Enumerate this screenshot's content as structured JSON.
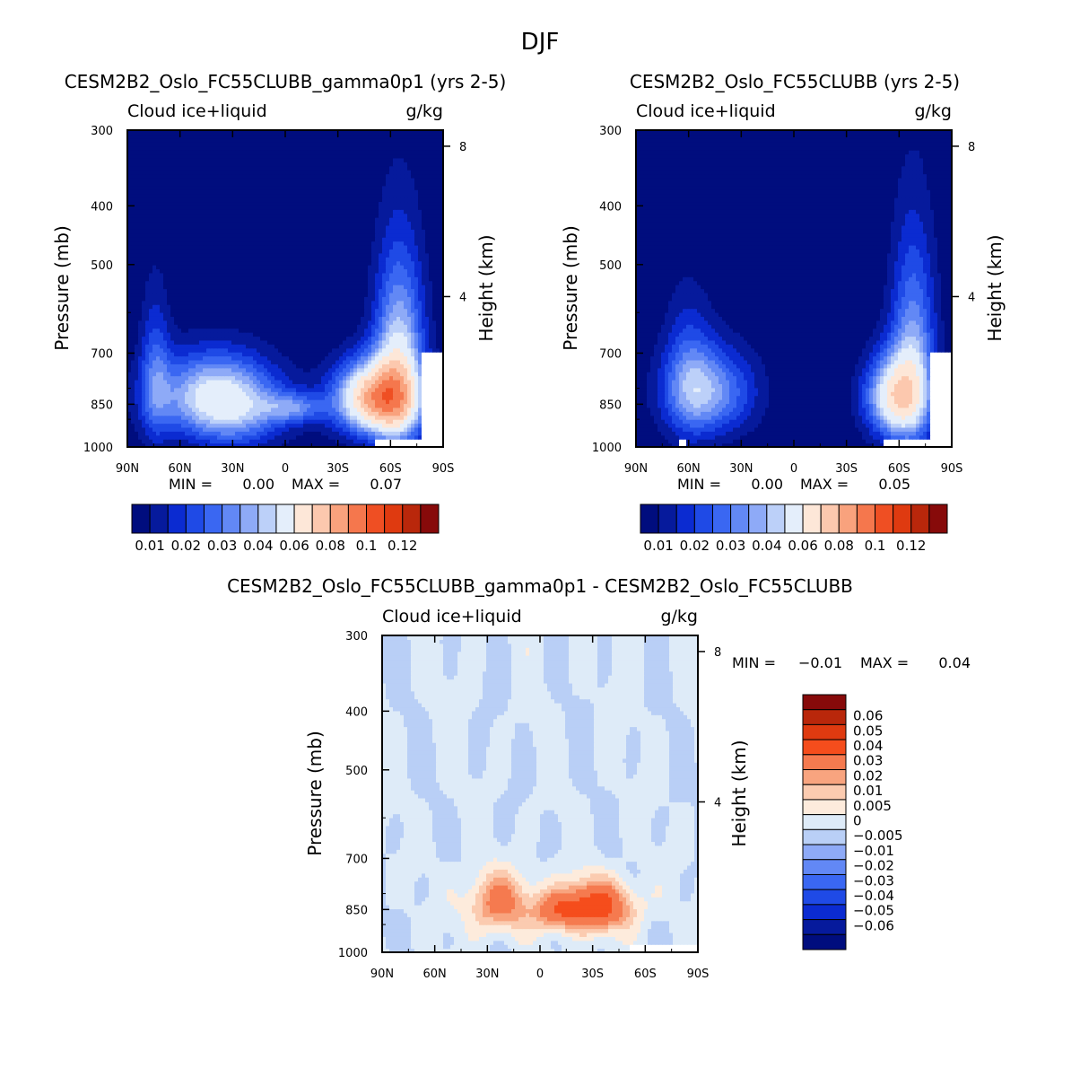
{
  "title": "DJF",
  "common": {
    "variable": "Cloud ice+liquid",
    "units": "g/kg",
    "ylabel": "Pressure (mb)",
    "y2label": "Height (km)",
    "min_label": "MIN =",
    "max_label": "MAX ="
  },
  "palettes": {
    "abs": [
      "#000d7e",
      "#061a9c",
      "#0b2bd1",
      "#1f4ae6",
      "#3a67f2",
      "#6288f5",
      "#8eaaf7",
      "#bcd0f9",
      "#e4eefb",
      "#fde7d8",
      "#fcc8ae",
      "#f9a27d",
      "#f5774d",
      "#ef4f23",
      "#df3a10",
      "#b9270b",
      "#870a0a"
    ],
    "diff": [
      "#870a0a",
      "#b9270b",
      "#df3a10",
      "#f54d1c",
      "#f57a4f",
      "#f8a47f",
      "#fbcbb0",
      "#fdebdc",
      "#deebf8",
      "#b9cff6",
      "#8eaaf7",
      "#6288f5",
      "#3a67f2",
      "#1f4ae6",
      "#0b2bd1",
      "#061a9c",
      "#000d7e"
    ]
  },
  "chart_data": [
    {
      "type": "heatmap",
      "title": "CESM2B2_Oslo_FC55CLUBB_gamma0p1 (yrs 2-5)",
      "subtitle_left": "Cloud ice+liquid",
      "subtitle_right": "g/kg",
      "xlabel": "",
      "ylabel": "Pressure (mb)",
      "y2label": "Height (km)",
      "x_ticks": [
        "90N",
        "60N",
        "30N",
        "0",
        "30S",
        "60S",
        "90S"
      ],
      "y_ticks": [
        "300",
        "400",
        "500",
        "700",
        "850",
        "1000"
      ],
      "y2_ticks": [
        "8",
        "4"
      ],
      "ylim": [
        1000,
        300
      ],
      "min": "0.00",
      "max": "0.07",
      "colorbar_labels": [
        "0.01",
        "0.02",
        "0.03",
        "0.04",
        "0.06",
        "0.08",
        "0.1",
        "0.12"
      ],
      "features": [
        {
          "lat": 42,
          "p": 815,
          "amp": 0.035,
          "sx": 24,
          "sp": 90
        },
        {
          "lat": 74,
          "p": 760,
          "amp": 0.018,
          "sx": 6,
          "sp": 160
        },
        {
          "lat": -52,
          "p": 830,
          "amp": 0.07,
          "sx": 16,
          "sp": 80
        },
        {
          "lat": -65,
          "p": 720,
          "amp": 0.04,
          "sx": 10,
          "sp": 190
        },
        {
          "lat": -5,
          "p": 860,
          "amp": 0.022,
          "sx": 12,
          "sp": 35
        },
        {
          "lat": 28,
          "p": 880,
          "amp": 0.02,
          "sx": 20,
          "sp": 90
        }
      ],
      "missing": [
        {
          "lat": [
            -52,
            -90
          ],
          "p": [
            975,
            1000
          ]
        },
        {
          "lat": [
            -78,
            -90
          ],
          "p": [
            700,
            1000
          ]
        }
      ]
    },
    {
      "type": "heatmap",
      "title": "CESM2B2_Oslo_FC55CLUBB (yrs 2-5)",
      "subtitle_left": "Cloud ice+liquid",
      "subtitle_right": "g/kg",
      "xlabel": "",
      "ylabel": "Pressure (mb)",
      "y2label": "Height (km)",
      "x_ticks": [
        "90N",
        "60N",
        "30N",
        "0",
        "30S",
        "60S",
        "90S"
      ],
      "y_ticks": [
        "300",
        "400",
        "500",
        "700",
        "850",
        "1000"
      ],
      "y2_ticks": [
        "8",
        "4"
      ],
      "ylim": [
        1000,
        300
      ],
      "min": "0.00",
      "max": "0.05",
      "colorbar_labels": [
        "0.01",
        "0.02",
        "0.03",
        "0.04",
        "0.06",
        "0.08",
        "0.1",
        "0.12"
      ],
      "features": [
        {
          "lat": 48,
          "p": 810,
          "amp": 0.03,
          "sx": 18,
          "sp": 95
        },
        {
          "lat": 60,
          "p": 750,
          "amp": 0.015,
          "sx": 10,
          "sp": 150
        },
        {
          "lat": -58,
          "p": 825,
          "amp": 0.05,
          "sx": 12,
          "sp": 90
        },
        {
          "lat": -68,
          "p": 700,
          "amp": 0.03,
          "sx": 9,
          "sp": 200
        }
      ],
      "missing": [
        {
          "lat": [
            -52,
            -90
          ],
          "p": [
            975,
            1000
          ]
        },
        {
          "lat": [
            -78,
            -90
          ],
          "p": [
            700,
            1000
          ]
        },
        {
          "lat": [
            66,
            62
          ],
          "p": [
            975,
            1000
          ]
        }
      ]
    },
    {
      "type": "heatmap",
      "title": "CESM2B2_Oslo_FC55CLUBB_gamma0p1 - CESM2B2_Oslo_FC55CLUBB",
      "subtitle_left": "Cloud ice+liquid",
      "subtitle_right": "g/kg",
      "xlabel": "",
      "ylabel": "Pressure (mb)",
      "y2label": "Height (km)",
      "x_ticks": [
        "90N",
        "60N",
        "30N",
        "0",
        "30S",
        "60S",
        "90S"
      ],
      "y_ticks": [
        "300",
        "400",
        "500",
        "700",
        "850",
        "1000"
      ],
      "y2_ticks": [
        "8",
        "4"
      ],
      "ylim": [
        1000,
        300
      ],
      "min": "-0.01",
      "max": "0.04",
      "colorbar_labels": [
        "0.06",
        "0.05",
        "0.04",
        "0.03",
        "0.02",
        "0.01",
        "0.005",
        "0",
        "-0.005",
        "-0.01",
        "-0.02",
        "-0.03",
        "-0.04",
        "-0.05",
        "-0.06"
      ],
      "features": [
        {
          "lat": 24,
          "p": 830,
          "amp": 0.022,
          "sx": 13,
          "sp": 65
        },
        {
          "lat": -30,
          "p": 840,
          "amp": 0.036,
          "sx": 16,
          "sp": 55
        },
        {
          "lat": -8,
          "p": 855,
          "amp": 0.016,
          "sx": 8,
          "sp": 40
        }
      ],
      "missing": [
        {
          "lat": [
            -52,
            -90
          ],
          "p": [
            975,
            1000
          ]
        }
      ]
    }
  ]
}
